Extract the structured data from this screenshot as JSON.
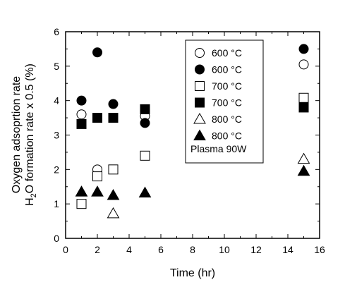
{
  "chart_data": {
    "type": "scatter",
    "title": "",
    "xlabel": "Time (hr)",
    "ylabel_line1": "Oxygen adsoprtion rate",
    "ylabel_line2_pre": "H",
    "ylabel_line2_sub": "2",
    "ylabel_line2_post": "O formation rate x 0.5 (%)",
    "xlim": [
      0,
      16
    ],
    "ylim": [
      0,
      6
    ],
    "xticks": [
      0,
      2,
      4,
      6,
      8,
      10,
      12,
      14,
      16
    ],
    "yticks": [
      0,
      1,
      2,
      3,
      4,
      5,
      6
    ],
    "grid": false,
    "legend_position": "top-right",
    "legend_note": "Plasma 90W",
    "series": [
      {
        "name": "600 °C",
        "marker": "circle-open",
        "x": [
          1,
          2,
          3,
          5,
          15
        ],
        "y": [
          3.6,
          2.0,
          null,
          3.55,
          5.05
        ]
      },
      {
        "name": "600 °C",
        "marker": "circle-filled",
        "x": [
          1,
          2,
          3,
          5,
          15
        ],
        "y": [
          4.0,
          5.4,
          3.9,
          3.35,
          5.5
        ]
      },
      {
        "name": "700 °C",
        "marker": "square-open",
        "x": [
          1,
          2,
          3,
          5,
          15
        ],
        "y": [
          1.0,
          1.8,
          2.0,
          2.4,
          4.08
        ]
      },
      {
        "name": "700 °C",
        "marker": "square-filled",
        "x": [
          1,
          2,
          3,
          5,
          15
        ],
        "y": [
          3.32,
          3.5,
          3.5,
          3.75,
          3.8
        ]
      },
      {
        "name": "800 °C",
        "marker": "triangle-open",
        "x": [
          1,
          2,
          3,
          5,
          15
        ],
        "y": [
          null,
          null,
          0.72,
          null,
          2.3
        ]
      },
      {
        "name": "800 °C",
        "marker": "triangle-filled",
        "x": [
          1,
          2,
          3,
          5,
          15
        ],
        "y": [
          1.35,
          1.35,
          1.25,
          1.32,
          1.95
        ]
      }
    ]
  }
}
